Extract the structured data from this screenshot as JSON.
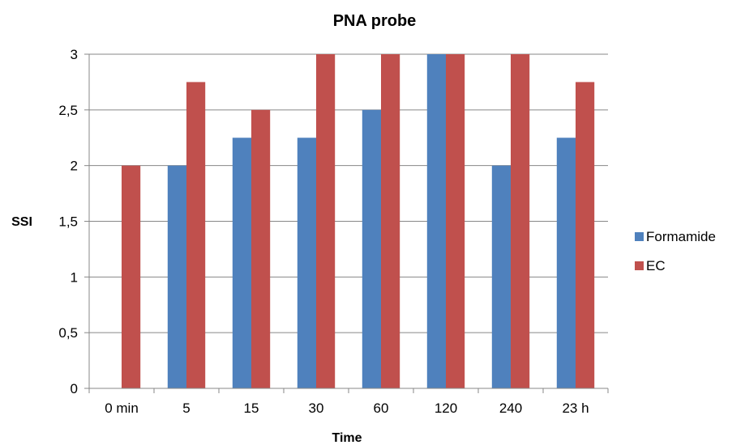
{
  "chart_data": {
    "type": "bar",
    "title": "PNA probe",
    "xlabel": "Time",
    "ylabel": "SSI",
    "categories": [
      "0 min",
      "5",
      "15",
      "30",
      "60",
      "120",
      "240",
      "23 h"
    ],
    "y_ticks": [
      "0",
      "0,5",
      "1",
      "1,5",
      "2",
      "2,5",
      "3"
    ],
    "ylim": [
      0,
      3
    ],
    "grid": true,
    "legend_position": "right",
    "series": [
      {
        "name": "Formamide",
        "color": "#4F81BD",
        "values": [
          0,
          2,
          2.25,
          2.25,
          2.5,
          3,
          2,
          2.25
        ]
      },
      {
        "name": "EC",
        "color": "#C0504D",
        "values": [
          2,
          2.75,
          2.5,
          3,
          3,
          3,
          3,
          2.75
        ]
      }
    ]
  }
}
